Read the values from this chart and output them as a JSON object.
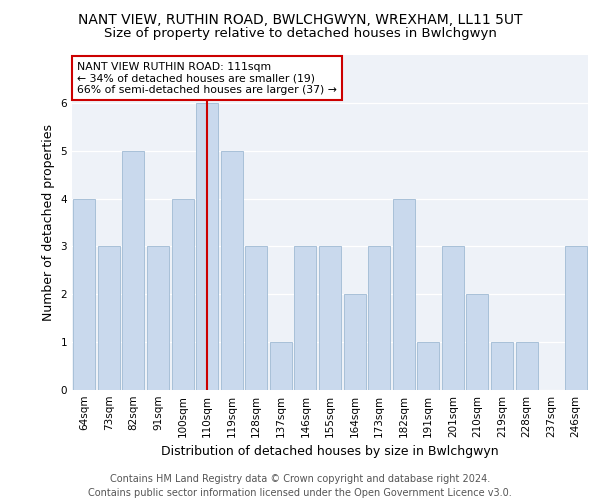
{
  "title": "NANT VIEW, RUTHIN ROAD, BWLCHGWYN, WREXHAM, LL11 5UT",
  "subtitle": "Size of property relative to detached houses in Bwlchgwyn",
  "xlabel": "Distribution of detached houses by size in Bwlchgwyn",
  "ylabel": "Number of detached properties",
  "categories": [
    "64sqm",
    "73sqm",
    "82sqm",
    "91sqm",
    "100sqm",
    "110sqm",
    "119sqm",
    "128sqm",
    "137sqm",
    "146sqm",
    "155sqm",
    "164sqm",
    "173sqm",
    "182sqm",
    "191sqm",
    "201sqm",
    "210sqm",
    "219sqm",
    "228sqm",
    "237sqm",
    "246sqm"
  ],
  "values": [
    4,
    3,
    5,
    3,
    4,
    6,
    5,
    3,
    1,
    3,
    3,
    2,
    3,
    4,
    1,
    3,
    2,
    1,
    1,
    0,
    3
  ],
  "bar_color": "#c9d9ed",
  "bar_edge_color": "#a8c0d8",
  "vline_color": "#cc0000",
  "vline_x_index": 5.5,
  "annotation_text": "NANT VIEW RUTHIN ROAD: 111sqm\n← 34% of detached houses are smaller (19)\n66% of semi-detached houses are larger (37) →",
  "annotation_box_color": "#ffffff",
  "annotation_box_edge": "#cc0000",
  "ylim": [
    0,
    7
  ],
  "yticks": [
    0,
    1,
    2,
    3,
    4,
    5,
    6
  ],
  "footer_text": "Contains HM Land Registry data © Crown copyright and database right 2024.\nContains public sector information licensed under the Open Government Licence v3.0.",
  "bg_color": "#eef2f8",
  "title_fontsize": 10,
  "subtitle_fontsize": 9.5,
  "tick_fontsize": 7.5,
  "ylabel_fontsize": 9,
  "xlabel_fontsize": 9,
  "annotation_fontsize": 7.8,
  "footer_fontsize": 7
}
